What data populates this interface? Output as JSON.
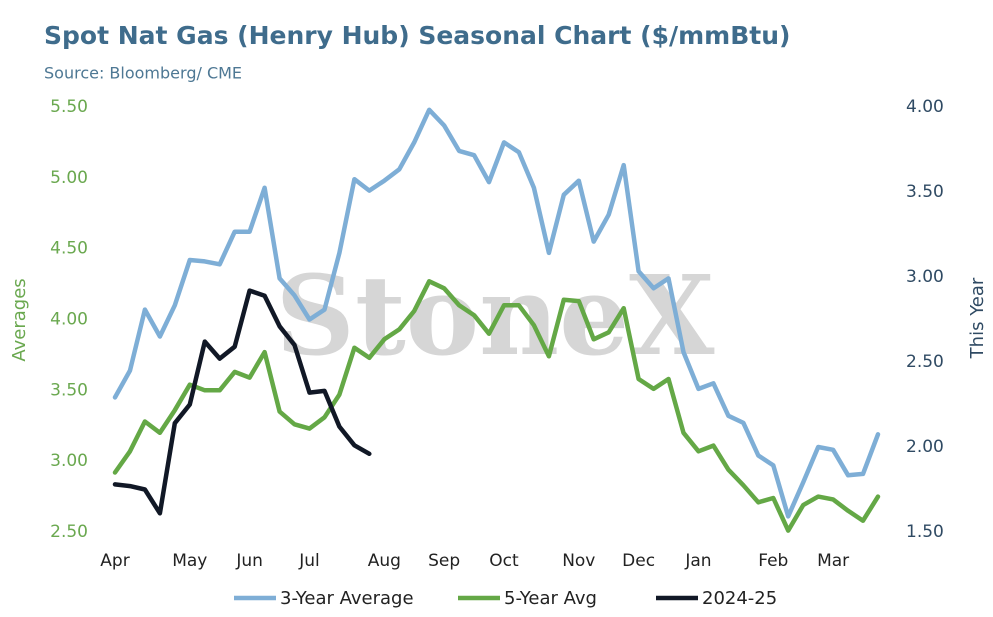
{
  "chart_data": {
    "type": "line",
    "title": "Spot Nat Gas (Henry Hub) Seasonal Chart ($/mmBtu)",
    "subtitle": "Source: Bloomberg/ CME",
    "watermark": "StoneX",
    "y_label": "Averages",
    "y2_label": "This Year",
    "categories": [
      "Apr",
      null,
      null,
      null,
      null,
      "May",
      null,
      null,
      null,
      "Jun",
      null,
      null,
      null,
      "Jul",
      null,
      null,
      null,
      null,
      "Aug",
      null,
      null,
      null,
      "Sep",
      null,
      null,
      null,
      "Oct",
      null,
      null,
      null,
      null,
      "Nov",
      null,
      null,
      null,
      "Dec",
      null,
      null,
      null,
      "Jan",
      null,
      null,
      null,
      null,
      "Feb",
      null,
      null,
      null,
      "Mar",
      null,
      null,
      null
    ],
    "ylim": [
      2.5,
      5.5
    ],
    "yticks": [
      {
        "value": 2.5,
        "label": "2.50"
      },
      {
        "value": 3,
        "label": "3.00"
      },
      {
        "value": 3.5,
        "label": "3.50"
      },
      {
        "value": 4,
        "label": "4.00"
      },
      {
        "value": 4.5,
        "label": "4.50"
      },
      {
        "value": 5,
        "label": "5.00"
      },
      {
        "value": 5.5,
        "label": "5.50"
      }
    ],
    "y2lim": [
      1.5,
      4.0
    ],
    "y2ticks": [
      {
        "value": 1.5,
        "label": "1.50"
      },
      {
        "value": 2,
        "label": "2.00"
      },
      {
        "value": 2.5,
        "label": "2.50"
      },
      {
        "value": 3,
        "label": "3.00"
      },
      {
        "value": 3.5,
        "label": "3.50"
      },
      {
        "value": 4,
        "label": "4.00"
      }
    ],
    "grid": false,
    "legend": "bottom",
    "series": [
      {
        "name": "3-Year Average",
        "color": "#7eaed6",
        "axis": "y",
        "values": [
          3.45,
          3.64,
          4.07,
          3.88,
          4.1,
          4.42,
          4.41,
          4.39,
          4.62,
          4.62,
          4.93,
          4.29,
          4.17,
          4.0,
          4.07,
          4.47,
          4.99,
          4.91,
          4.98,
          5.06,
          5.25,
          5.48,
          5.37,
          5.19,
          5.16,
          4.97,
          5.25,
          5.18,
          4.93,
          4.47,
          4.88,
          4.98,
          4.55,
          4.74,
          5.09,
          4.34,
          4.22,
          4.29,
          3.77,
          3.51,
          3.55,
          3.32,
          3.27,
          3.04,
          2.97,
          2.61,
          2.85,
          3.1,
          3.08,
          2.9,
          2.91,
          3.19
        ]
      },
      {
        "name": "5-Year Avg",
        "color": "#64a846",
        "axis": "y",
        "values": [
          2.92,
          3.07,
          3.28,
          3.2,
          3.36,
          3.54,
          3.5,
          3.5,
          3.63,
          3.59,
          3.77,
          3.35,
          3.26,
          3.23,
          3.31,
          3.47,
          3.8,
          3.73,
          3.86,
          3.93,
          4.06,
          4.27,
          4.22,
          4.1,
          4.03,
          3.9,
          4.1,
          4.1,
          3.96,
          3.74,
          4.14,
          4.13,
          3.86,
          3.91,
          4.08,
          3.58,
          3.51,
          3.58,
          3.2,
          3.07,
          3.11,
          2.94,
          2.83,
          2.71,
          2.74,
          2.51,
          2.69,
          2.75,
          2.73,
          2.65,
          2.58,
          2.75
        ]
      },
      {
        "name": "2024-25",
        "color": "#111826",
        "axis": "y2",
        "values": [
          1.78,
          1.77,
          1.75,
          1.61,
          2.14,
          2.25,
          2.62,
          2.52,
          2.59,
          2.92,
          2.89,
          2.71,
          2.6,
          2.32,
          2.33,
          2.12,
          2.01,
          1.96,
          null,
          null,
          null,
          null,
          null,
          null,
          null,
          null,
          null,
          null,
          null,
          null,
          null,
          null,
          null,
          null,
          null,
          null,
          null,
          null,
          null,
          null,
          null,
          null,
          null,
          null,
          null,
          null,
          null,
          null,
          null,
          null,
          null,
          null
        ]
      }
    ]
  }
}
